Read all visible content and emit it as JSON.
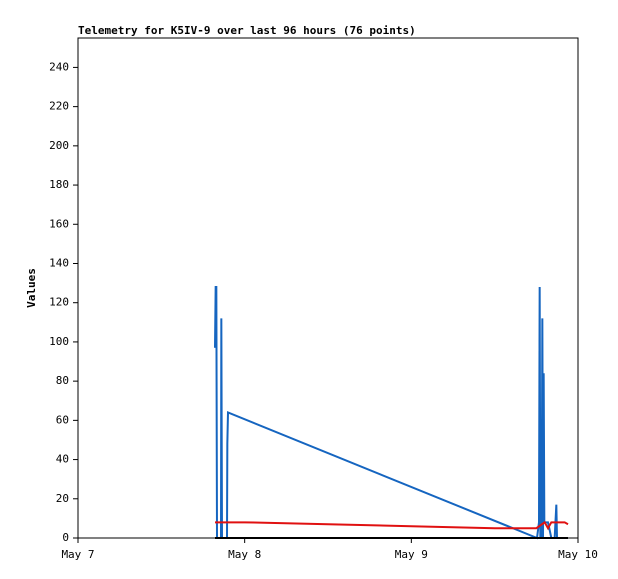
{
  "chart_data": {
    "type": "line",
    "title": "Telemetry for K5IV-9 over last 96 hours (76 points)",
    "y_label": "Values",
    "xlim": [
      0,
      3
    ],
    "xticks": [
      {
        "value": 0,
        "label": "May 7"
      },
      {
        "value": 1,
        "label": "May 8"
      },
      {
        "value": 2,
        "label": "May 9"
      },
      {
        "value": 3,
        "label": "May 10"
      }
    ],
    "ylim": [
      0,
      255
    ],
    "yticks": [
      0,
      20,
      40,
      60,
      80,
      100,
      120,
      140,
      160,
      180,
      200,
      220,
      240
    ],
    "grid": false,
    "series": [
      {
        "color": "#1565c0",
        "x": [
          0.822,
          0.826,
          0.83,
          0.834,
          0.858,
          0.86,
          0.864,
          0.894,
          0.896,
          0.9,
          2.754,
          2.766,
          2.77,
          2.774,
          2.778,
          2.782,
          2.786,
          2.79,
          2.794,
          2.798,
          2.82,
          2.84,
          2.86,
          2.87,
          2.874,
          2.94
        ],
        "values": [
          97,
          128,
          128,
          0,
          0,
          112,
          0,
          0,
          48,
          64,
          0,
          8,
          128,
          0,
          56,
          0,
          112,
          0,
          84,
          8,
          8,
          0,
          0,
          17,
          0,
          0
        ]
      },
      {
        "color": "#e01010",
        "x": [
          0.822,
          1.0,
          1.5,
          2.0,
          2.5,
          2.75,
          2.8,
          2.82,
          2.84,
          2.92,
          2.94
        ],
        "values": [
          8,
          8,
          7,
          6,
          5,
          5,
          8,
          5,
          8,
          8,
          7
        ]
      },
      {
        "color": "#000000",
        "x": [
          0.822,
          2.94
        ],
        "values": [
          0,
          0
        ]
      }
    ]
  }
}
